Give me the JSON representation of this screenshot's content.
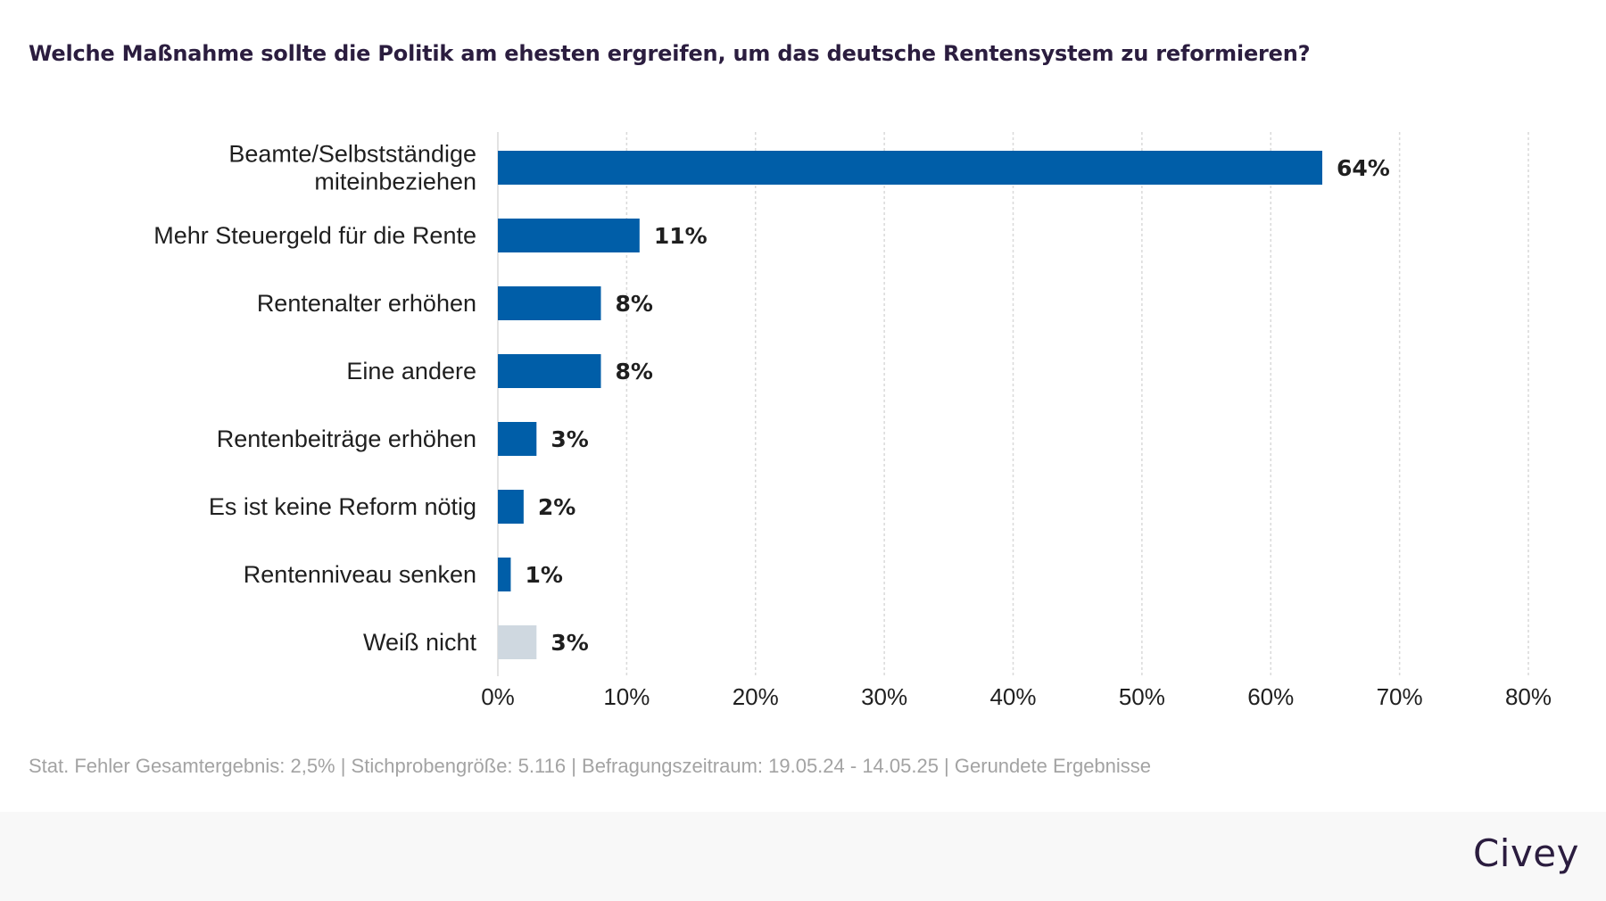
{
  "title": "Welche Maßnahme sollte die Politik am ehesten ergreifen, um das deutsche Rentensystem zu reformieren?",
  "footnote": "Stat. Fehler Gesamtergebnis: 2,5% | Stichprobengröße: 5.116 | Befragungszeitraum: 19.05.24 - 14.05.25 | Gerundete Ergebnisse",
  "brand": "Civey",
  "colors": {
    "bar_primary": "#005ea8",
    "bar_neutral": "#cfd8e0",
    "title": "#2b1d3f",
    "footnote": "#a3a3a3",
    "gridline": "#d9d9d9",
    "axis": "#e3e3e3"
  },
  "chart_data": {
    "type": "bar",
    "orientation": "horizontal",
    "title": "Welche Maßnahme sollte die Politik am ehesten ergreifen, um das deutsche Rentensystem zu reformieren?",
    "xlabel": "",
    "ylabel": "",
    "xlim": [
      0,
      80
    ],
    "xticks": [
      0,
      10,
      20,
      30,
      40,
      50,
      60,
      70,
      80
    ],
    "xtick_labels": [
      "0%",
      "10%",
      "20%",
      "30%",
      "40%",
      "50%",
      "60%",
      "70%",
      "80%"
    ],
    "grid": "vertical dotted",
    "categories": [
      [
        "Beamte/Selbstständige",
        "miteinbeziehen"
      ],
      [
        "Mehr Steuergeld für die Rente"
      ],
      [
        "Rentenalter erhöhen"
      ],
      [
        "Eine andere"
      ],
      [
        "Rentenbeiträge erhöhen"
      ],
      [
        "Es ist keine Reform nötig"
      ],
      [
        "Rentenniveau senken"
      ],
      [
        "Weiß nicht"
      ]
    ],
    "values": [
      64,
      11,
      8,
      8,
      3,
      2,
      1,
      3
    ],
    "value_labels": [
      "64%",
      "11%",
      "8%",
      "8%",
      "3%",
      "2%",
      "1%",
      "3%"
    ],
    "bar_kind": [
      "primary",
      "primary",
      "primary",
      "primary",
      "primary",
      "primary",
      "primary",
      "neutral"
    ],
    "unit": "%"
  }
}
